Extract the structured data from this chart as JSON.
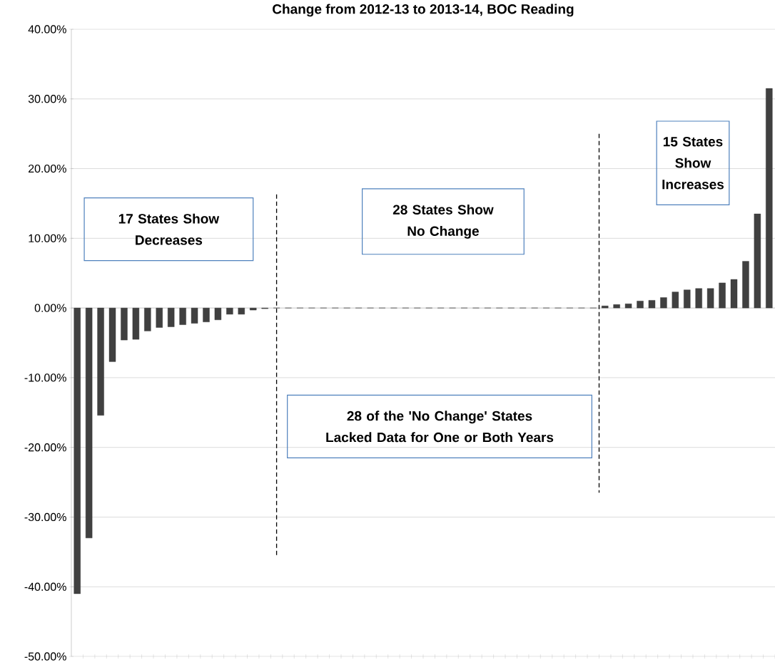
{
  "chart_data": {
    "type": "bar",
    "title": "Change from 2012-13 to 2013-14, BOC Reading",
    "categories": [
      null,
      null,
      null,
      null,
      null,
      null,
      null,
      null,
      null,
      null,
      null,
      null,
      null,
      null,
      null,
      null,
      null,
      null,
      null,
      null,
      null,
      null,
      null,
      null,
      null,
      null,
      null,
      null,
      null,
      null,
      null,
      null,
      null,
      null,
      null,
      null,
      null,
      null,
      null,
      null,
      null,
      null,
      null,
      null,
      null,
      null,
      null,
      null,
      null,
      null,
      null,
      null,
      null,
      null,
      null,
      null,
      null,
      null,
      null,
      null
    ],
    "values": [
      -41.0,
      -33.0,
      -15.4,
      -7.7,
      -4.6,
      -4.5,
      -3.3,
      -2.8,
      -2.7,
      -2.4,
      -2.2,
      -2.0,
      -1.7,
      -0.9,
      -0.9,
      -0.3,
      -0.1,
      0,
      0,
      0,
      0,
      0,
      0,
      0,
      0,
      0,
      0,
      0,
      0,
      0,
      0,
      0,
      0,
      0,
      0,
      0,
      0,
      0,
      0,
      0,
      0,
      0,
      0,
      0,
      0,
      0.3,
      0.5,
      0.6,
      1.0,
      1.1,
      1.5,
      2.3,
      2.6,
      2.8,
      2.8,
      3.6,
      4.1,
      6.7,
      13.5,
      31.5
    ],
    "color": "#404040",
    "ylim": [
      -50,
      40
    ],
    "yticks": [
      {
        "value": -50,
        "label": "-50.00%"
      },
      {
        "value": -40,
        "label": "-40.00%"
      },
      {
        "value": -30,
        "label": "-30.00%"
      },
      {
        "value": -20,
        "label": "-20.00%"
      },
      {
        "value": -10,
        "label": "-10.00%"
      },
      {
        "value": 0,
        "label": "0.00%"
      },
      {
        "value": 10,
        "label": "10.00%"
      },
      {
        "value": 20,
        "label": "20.00%"
      },
      {
        "value": 30,
        "label": "30.00%"
      },
      {
        "value": 40,
        "label": "40.00%"
      }
    ],
    "grid": "y",
    "annotations": [
      "17 States Show Decreases",
      "28 States Show No Change",
      "28 of the 'No Change' States Lacked Data for One or Both Years",
      "15 States Show Increases"
    ]
  }
}
